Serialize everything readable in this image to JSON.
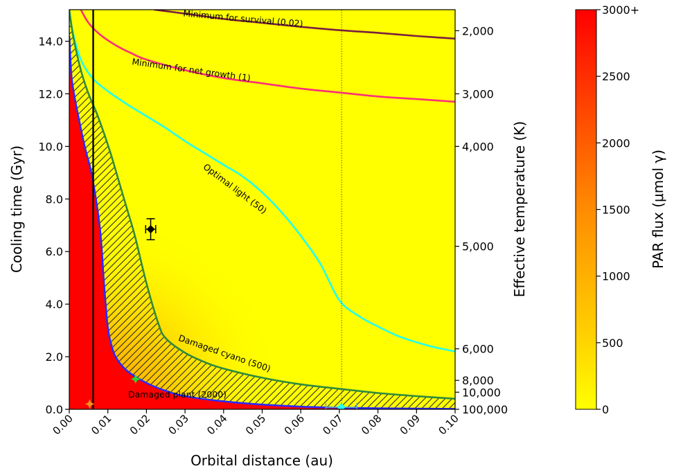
{
  "chart_data": {
    "type": "heatmap",
    "x": {
      "label": "Orbital distance (au)",
      "range": [
        0.0,
        0.1
      ],
      "ticks": [
        0.0,
        0.01,
        0.02,
        0.03,
        0.04,
        0.05,
        0.06,
        0.07,
        0.08,
        0.09,
        0.1
      ],
      "tick_labels": [
        "0.00",
        "0.01",
        "0.02",
        "0.03",
        "0.04",
        "0.05",
        "0.06",
        "0.07",
        "0.08",
        "0.09",
        "0.10"
      ]
    },
    "y_left": {
      "label": "Cooling time (Gyr)",
      "range": [
        0.0,
        15.2
      ],
      "ticks": [
        0,
        2,
        4,
        6,
        8,
        10,
        12,
        14
      ],
      "tick_labels": [
        "0.0",
        "2.0",
        "4.0",
        "6.0",
        "8.0",
        "10.0",
        "12.0",
        "14.0"
      ]
    },
    "y_right": {
      "label": "Effective temperature (K)",
      "ticks": [
        {
          "label": "2,000",
          "cooling_time": 14.4
        },
        {
          "label": "3,000",
          "cooling_time": 12.0
        },
        {
          "label": "4,000",
          "cooling_time": 10.0
        },
        {
          "label": "5,000",
          "cooling_time": 6.2
        },
        {
          "label": "6,000",
          "cooling_time": 2.3
        },
        {
          "label": "8,000",
          "cooling_time": 1.1
        },
        {
          "label": "10,000",
          "cooling_time": 0.65
        },
        {
          "label": "100,000",
          "cooling_time": 0.0
        }
      ]
    },
    "colorbar": {
      "label": "PAR flux (μmol γ)",
      "range": [
        0,
        3000
      ],
      "ticks": [
        0,
        500,
        1000,
        1500,
        2000,
        2500,
        3000
      ],
      "tick_labels": [
        "0",
        "500",
        "1000",
        "1500",
        "2000",
        "2500",
        "3000+"
      ],
      "colors": [
        "#ffff00",
        "#ffa500",
        "#ff0000"
      ]
    },
    "series": [
      {
        "name": "Minimum for survival (0.02)",
        "color": "#7a1f3d",
        "x": [
          0.022,
          0.03,
          0.04,
          0.05,
          0.06,
          0.07,
          0.08,
          0.09,
          0.1
        ],
        "y": [
          15.2,
          15.05,
          14.85,
          14.7,
          14.55,
          14.42,
          14.32,
          14.2,
          14.1
        ]
      },
      {
        "name": "Minimum for net growth (1)",
        "color": "#ff2d7a",
        "x": [
          0.003,
          0.005,
          0.008,
          0.012,
          0.016,
          0.02,
          0.03,
          0.04,
          0.05,
          0.06,
          0.07,
          0.08,
          0.09,
          0.1
        ],
        "y": [
          15.2,
          14.7,
          14.25,
          13.85,
          13.55,
          13.3,
          12.9,
          12.6,
          12.4,
          12.2,
          12.05,
          11.9,
          11.8,
          11.7
        ]
      },
      {
        "name": "Optimal light (50)",
        "color": "#22ffee",
        "x": [
          0.0,
          0.001,
          0.003,
          0.006,
          0.01,
          0.015,
          0.02,
          0.025,
          0.03,
          0.035,
          0.04,
          0.045,
          0.05,
          0.055,
          0.06,
          0.065,
          0.07,
          0.075,
          0.08,
          0.085,
          0.09,
          0.095,
          0.1
        ],
        "y": [
          15.2,
          14.3,
          13.3,
          12.6,
          12.1,
          11.6,
          11.15,
          10.7,
          10.2,
          9.75,
          9.3,
          8.85,
          8.25,
          7.5,
          6.6,
          5.55,
          4.15,
          3.55,
          3.15,
          2.8,
          2.55,
          2.35,
          2.2
        ]
      },
      {
        "name": "Damaged cyano (500)",
        "color": "#2e8b3a",
        "x": [
          0.0,
          0.001,
          0.003,
          0.005,
          0.007,
          0.009,
          0.011,
          0.013,
          0.015,
          0.017,
          0.02,
          0.023,
          0.025,
          0.03,
          0.035,
          0.04,
          0.05,
          0.06,
          0.07,
          0.08,
          0.09,
          0.1
        ],
        "y": [
          15.2,
          14.2,
          12.9,
          12.0,
          11.3,
          10.5,
          9.6,
          8.6,
          7.6,
          6.6,
          4.8,
          3.3,
          2.7,
          2.15,
          1.8,
          1.55,
          1.2,
          0.95,
          0.78,
          0.62,
          0.5,
          0.4
        ]
      },
      {
        "name": "Damaged plant (2000)",
        "color": "#2a2aff",
        "x": [
          0.0,
          0.0005,
          0.001,
          0.002,
          0.004,
          0.006,
          0.008,
          0.009,
          0.01,
          0.011,
          0.012,
          0.014,
          0.016,
          0.02,
          0.025,
          0.03,
          0.04,
          0.05,
          0.06,
          0.07,
          0.08,
          0.09,
          0.1
        ],
        "y": [
          14.2,
          12.8,
          12.2,
          11.4,
          10.0,
          8.8,
          6.8,
          4.8,
          3.1,
          2.4,
          2.0,
          1.6,
          1.35,
          1.0,
          0.7,
          0.5,
          0.3,
          0.18,
          0.1,
          0.06,
          0.04,
          0.025,
          0.015
        ]
      }
    ],
    "hatched_region": {
      "between": [
        "Damaged plant (2000)",
        "Damaged cyano (500)"
      ]
    },
    "vertical_lines": [
      {
        "x": 0.0062,
        "style": "solid",
        "color": "#000000"
      },
      {
        "x": 0.0706,
        "style": "dotted",
        "color": "#555555"
      }
    ],
    "markers": [
      {
        "x": 0.0211,
        "y": 6.85,
        "color": "#000000",
        "shape": "diamond",
        "xerr": 0.0013,
        "yerr": 0.4
      },
      {
        "x": 0.0172,
        "y": 1.15,
        "color": "#22dd33",
        "shape": "star"
      },
      {
        "x": 0.0053,
        "y": 0.2,
        "color": "#ff8c1a",
        "shape": "star"
      },
      {
        "x": 0.0705,
        "y": 0.08,
        "color": "#22ffee",
        "shape": "diamond",
        "xerr": 0.004
      }
    ],
    "grid": false,
    "legend": "none"
  }
}
